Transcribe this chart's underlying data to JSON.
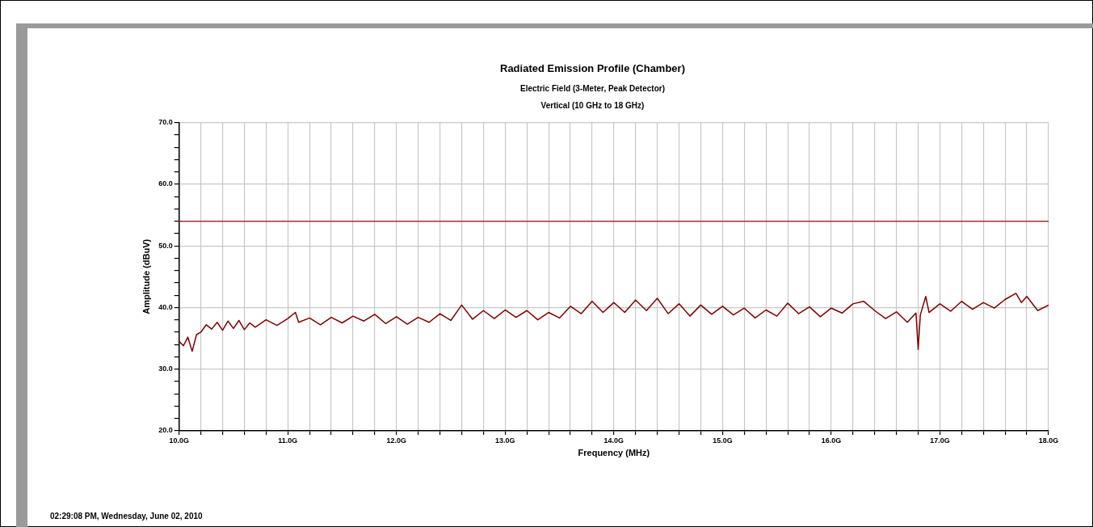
{
  "chart_data": {
    "type": "line",
    "title": "Radiated Emission Profile (Chamber)",
    "subtitle": "Electric Field (3-Meter, Peak Detector)\nVertical (10 GHz to 18 GHz)",
    "xlabel": "Frequency (MHz)",
    "ylabel": "Amplitude (dBuV)",
    "annotations": [
      "02:29:08 PM, Wednesday, June 02, 2010"
    ],
    "x": [
      10.0,
      10.04,
      10.08,
      10.12,
      10.16,
      10.2,
      10.25,
      10.3,
      10.35,
      10.4,
      10.45,
      10.5,
      10.55,
      10.6,
      10.65,
      10.7,
      10.8,
      10.9,
      11.0,
      11.07,
      11.1,
      11.2,
      11.3,
      11.4,
      11.5,
      11.6,
      11.7,
      11.8,
      11.9,
      12.0,
      12.1,
      12.2,
      12.3,
      12.4,
      12.5,
      12.6,
      12.7,
      12.8,
      12.9,
      13.0,
      13.1,
      13.2,
      13.3,
      13.4,
      13.5,
      13.6,
      13.7,
      13.8,
      13.9,
      14.0,
      14.1,
      14.2,
      14.3,
      14.4,
      14.5,
      14.6,
      14.7,
      14.8,
      14.9,
      15.0,
      15.1,
      15.2,
      15.3,
      15.4,
      15.5,
      15.6,
      15.7,
      15.8,
      15.9,
      16.0,
      16.1,
      16.2,
      16.3,
      16.4,
      16.5,
      16.6,
      16.7,
      16.78,
      16.8,
      16.82,
      16.87,
      16.9,
      17.0,
      17.1,
      17.2,
      17.3,
      17.4,
      17.5,
      17.6,
      17.7,
      17.75,
      17.8,
      17.9,
      18.0
    ],
    "series": [
      {
        "color": "#800000",
        "values": [
          34.5,
          33.8,
          35.2,
          32.9,
          35.6,
          36.0,
          37.2,
          36.5,
          37.6,
          36.3,
          37.8,
          36.6,
          37.9,
          36.4,
          37.5,
          36.8,
          38.0,
          37.1,
          38.2,
          39.2,
          37.6,
          38.3,
          37.2,
          38.4,
          37.5,
          38.6,
          37.8,
          38.9,
          37.4,
          38.5,
          37.3,
          38.4,
          37.6,
          39.0,
          37.9,
          40.4,
          38.1,
          39.5,
          38.2,
          39.6,
          38.4,
          39.5,
          38.0,
          39.2,
          38.3,
          40.2,
          39.0,
          41.0,
          39.2,
          40.8,
          39.2,
          41.2,
          39.5,
          41.5,
          39.0,
          40.6,
          38.6,
          40.4,
          38.9,
          40.2,
          38.8,
          39.9,
          38.3,
          39.6,
          38.6,
          40.7,
          39.0,
          40.1,
          38.5,
          39.9,
          39.1,
          40.6,
          41.0,
          39.5,
          38.2,
          39.3,
          37.6,
          39.1,
          33.2,
          38.8,
          41.8,
          39.2,
          40.6,
          39.4,
          41.0,
          39.7,
          40.8,
          39.9,
          41.3,
          42.3,
          40.8,
          41.8,
          39.5,
          40.4
        ]
      }
    ],
    "xlim": [
      10,
      18
    ],
    "xticks": [
      {
        "value": 10,
        "label": "10.0G"
      },
      {
        "value": 10.2,
        "label": null
      },
      {
        "value": 10.4,
        "label": null
      },
      {
        "value": 10.6,
        "label": null
      },
      {
        "value": 10.8,
        "label": null
      },
      {
        "value": 11,
        "label": "11.0G"
      },
      {
        "value": 11.2,
        "label": null
      },
      {
        "value": 11.4,
        "label": null
      },
      {
        "value": 11.6,
        "label": null
      },
      {
        "value": 11.8,
        "label": null
      },
      {
        "value": 12,
        "label": "12.0G"
      },
      {
        "value": 12.2,
        "label": null
      },
      {
        "value": 12.4,
        "label": null
      },
      {
        "value": 12.6,
        "label": null
      },
      {
        "value": 12.8,
        "label": null
      },
      {
        "value": 13,
        "label": "13.0G"
      },
      {
        "value": 13.2,
        "label": null
      },
      {
        "value": 13.4,
        "label": null
      },
      {
        "value": 13.6,
        "label": null
      },
      {
        "value": 13.8,
        "label": null
      },
      {
        "value": 14,
        "label": "14.0G"
      },
      {
        "value": 14.2,
        "label": null
      },
      {
        "value": 14.4,
        "label": null
      },
      {
        "value": 14.6,
        "label": null
      },
      {
        "value": 14.8,
        "label": null
      },
      {
        "value": 15,
        "label": "15.0G"
      },
      {
        "value": 15.2,
        "label": null
      },
      {
        "value": 15.4,
        "label": null
      },
      {
        "value": 15.6,
        "label": null
      },
      {
        "value": 15.8,
        "label": null
      },
      {
        "value": 16,
        "label": "16.0G"
      },
      {
        "value": 16.2,
        "label": null
      },
      {
        "value": 16.4,
        "label": null
      },
      {
        "value": 16.6,
        "label": null
      },
      {
        "value": 16.8,
        "label": null
      },
      {
        "value": 17,
        "label": "17.0G"
      },
      {
        "value": 17.2,
        "label": null
      },
      {
        "value": 17.4,
        "label": null
      },
      {
        "value": 17.6,
        "label": null
      },
      {
        "value": 17.8,
        "label": null
      },
      {
        "value": 18,
        "label": "18.0G"
      }
    ],
    "ylim": [
      20,
      70
    ],
    "yticks": [
      {
        "value": 20,
        "label": "20.0"
      },
      {
        "value": 22,
        "label": null
      },
      {
        "value": 24,
        "label": null
      },
      {
        "value": 26,
        "label": null
      },
      {
        "value": 28,
        "label": null
      },
      {
        "value": 30,
        "label": "30.0"
      },
      {
        "value": 32,
        "label": null
      },
      {
        "value": 34,
        "label": null
      },
      {
        "value": 36,
        "label": null
      },
      {
        "value": 38,
        "label": null
      },
      {
        "value": 40,
        "label": "40.0"
      },
      {
        "value": 42,
        "label": null
      },
      {
        "value": 44,
        "label": null
      },
      {
        "value": 46,
        "label": null
      },
      {
        "value": 48,
        "label": null
      },
      {
        "value": 50,
        "label": "50.0"
      },
      {
        "value": 52,
        "label": null
      },
      {
        "value": 54,
        "label": null
      },
      {
        "value": 56,
        "label": null
      },
      {
        "value": 58,
        "label": null
      },
      {
        "value": 60,
        "label": "60.0"
      },
      {
        "value": 62,
        "label": null
      },
      {
        "value": 64,
        "label": null
      },
      {
        "value": 66,
        "label": null
      },
      {
        "value": 68,
        "label": null
      },
      {
        "value": 70,
        "label": "70.0"
      }
    ],
    "ref_lines": [
      {
        "axis": "y",
        "value": 54,
        "color": "#a03030"
      }
    ],
    "grid": true,
    "marker": "none",
    "line_style": "solid"
  }
}
